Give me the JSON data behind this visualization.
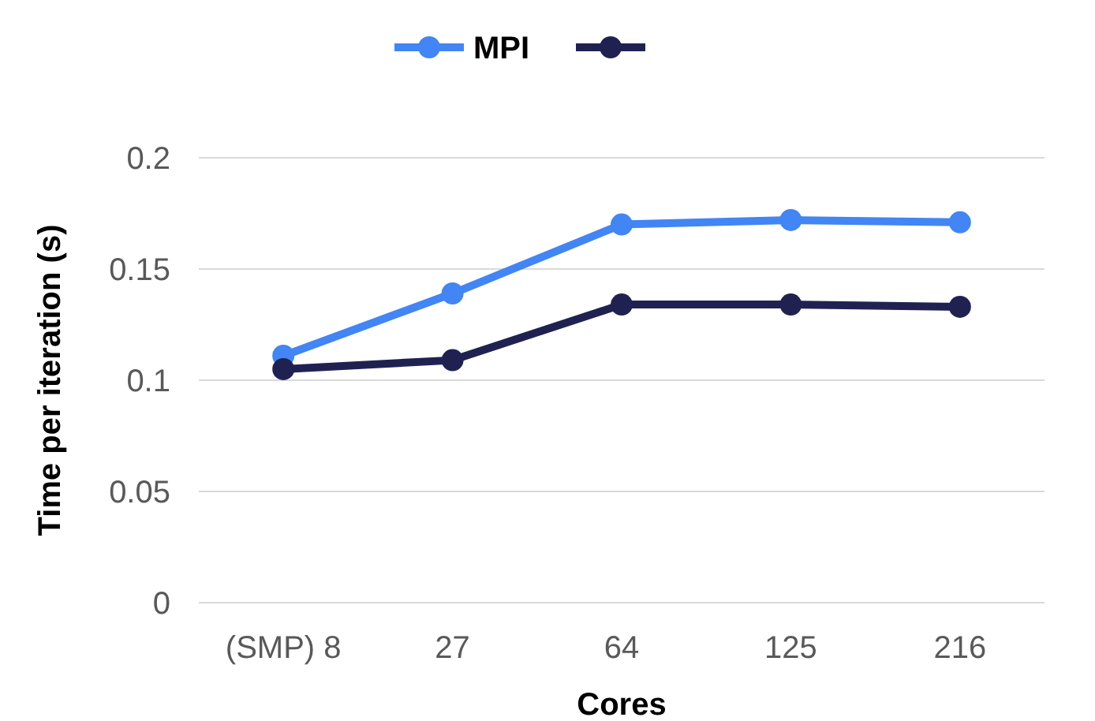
{
  "chart_data": {
    "type": "line",
    "xlabel": "Cores",
    "ylabel": "Time per iteration (s)",
    "categories": [
      "(SMP) 8",
      "27",
      "64",
      "125",
      "216"
    ],
    "series": [
      {
        "name": "MPI",
        "color": "#4285f4",
        "values": [
          0.111,
          0.139,
          0.17,
          0.172,
          0.171
        ]
      },
      {
        "color": "#1f2251",
        "values": [
          0.105,
          0.109,
          0.134,
          0.134,
          0.133
        ]
      }
    ],
    "ylim": [
      0,
      0.2
    ],
    "yticks": [
      0,
      0.05,
      0.1,
      0.15,
      0.2
    ],
    "grid": "y",
    "legend": "top",
    "marker": "circle",
    "line_style": "solid"
  }
}
